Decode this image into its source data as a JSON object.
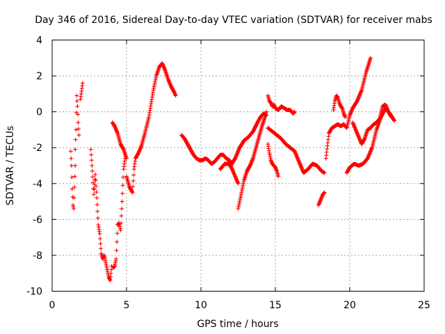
{
  "chart_data": {
    "type": "scatter",
    "title": "Day 346 of 2016, Sidereal Day-to-day VTEC variation (SDTVAR) for receiver mabs",
    "xlabel": "GPS time / hours",
    "ylabel": "SDTVAR / TECUs",
    "xlim": [
      0,
      25
    ],
    "ylim": [
      -10,
      4
    ],
    "xticks": [
      0,
      5,
      10,
      15,
      20,
      25
    ],
    "yticks": [
      -10,
      -8,
      -6,
      -4,
      -2,
      0,
      2,
      4
    ],
    "xtick_labels": [
      "0",
      "5",
      "10",
      "15",
      "20",
      "25"
    ],
    "ytick_labels": [
      "-10",
      "-8",
      "-6",
      "-4",
      "-2",
      "0",
      "2",
      "4"
    ],
    "grid": true,
    "marker": "+",
    "color": "#ff0000",
    "series": [
      {
        "name": "s1",
        "x": [
          1.25,
          1.3,
          1.35,
          1.4,
          1.45,
          1.5,
          1.55
        ],
        "y": [
          -2.2,
          -3.0,
          -4.3,
          -5.2,
          -5.4,
          -4.2,
          -3.0
        ]
      },
      {
        "name": "s2",
        "x": [
          1.55,
          1.6,
          1.65,
          1.7,
          1.75,
          1.8
        ],
        "y": [
          -2.1,
          -1.0,
          0.9,
          0.3,
          -0.6,
          -1.3
        ]
      },
      {
        "name": "s3",
        "x": [
          1.9,
          2.05
        ],
        "y": [
          0.7,
          1.6
        ]
      },
      {
        "name": "s4",
        "x": [
          2.6,
          2.7,
          2.8,
          2.9,
          3.0,
          3.1,
          3.2,
          3.3,
          3.4,
          3.5,
          3.6,
          3.7,
          3.8,
          3.9,
          4.0
        ],
        "y": [
          -2.1,
          -3.3,
          -4.6,
          -3.5,
          -4.8,
          -6.3,
          -6.8,
          -7.9,
          -8.2,
          -8.0,
          -8.4,
          -8.8,
          -9.2,
          -9.4,
          -8.6
        ]
      },
      {
        "name": "s5",
        "x": [
          4.1,
          4.2,
          4.3,
          4.4,
          4.5,
          4.6,
          4.7,
          4.8,
          4.9
        ],
        "y": [
          -8.7,
          -8.6,
          -8.2,
          -6.3,
          -6.2,
          -6.6,
          -5.0,
          -3.2,
          -2.6
        ]
      },
      {
        "name": "s6",
        "x": [
          4.05,
          4.2,
          4.4,
          4.6,
          4.8,
          5.0
        ],
        "y": [
          -0.6,
          -0.8,
          -1.2,
          -1.8,
          -2.1,
          -2.6
        ]
      },
      {
        "name": "s7",
        "x": [
          5.0,
          5.2,
          5.4,
          5.5,
          5.6,
          5.8,
          6.0,
          6.2,
          6.5,
          6.8,
          7.0,
          7.2,
          7.4,
          7.6,
          7.8,
          8.0,
          8.2,
          8.3
        ],
        "y": [
          -3.6,
          -4.2,
          -4.5,
          -3.2,
          -2.6,
          -2.3,
          -1.9,
          -1.3,
          -0.3,
          1.2,
          2.0,
          2.5,
          2.7,
          2.3,
          1.8,
          1.4,
          1.1,
          0.9
        ]
      },
      {
        "name": "s8",
        "x": [
          8.7,
          8.9,
          9.1,
          9.3,
          9.5,
          9.7,
          9.9,
          10.1,
          10.3,
          10.5,
          10.7,
          10.9,
          11.1,
          11.3,
          11.5,
          11.7,
          11.9,
          12.0
        ],
        "y": [
          -1.3,
          -1.5,
          -1.8,
          -2.1,
          -2.4,
          -2.6,
          -2.7,
          -2.7,
          -2.6,
          -2.7,
          -2.9,
          -2.8,
          -2.6,
          -2.4,
          -2.4,
          -2.6,
          -2.7,
          -2.8
        ]
      },
      {
        "name": "s9",
        "x": [
          11.3,
          11.6,
          11.9,
          12.1,
          12.3,
          12.5
        ],
        "y": [
          -3.2,
          -2.9,
          -2.9,
          -3.2,
          -3.6,
          -4.0
        ]
      },
      {
        "name": "s10",
        "x": [
          12.0,
          12.3,
          12.6,
          12.9,
          13.2,
          13.5,
          13.8,
          14.0,
          14.2,
          14.4
        ],
        "y": [
          -3.0,
          -2.6,
          -2.0,
          -1.6,
          -1.4,
          -1.1,
          -0.6,
          -0.3,
          -0.1,
          -0.2
        ]
      },
      {
        "name": "s11",
        "x": [
          12.5,
          12.7,
          12.9,
          13.1,
          13.3,
          13.5,
          13.7,
          13.9,
          14.1,
          14.3,
          14.4
        ],
        "y": [
          -5.4,
          -4.6,
          -3.8,
          -3.3,
          -3.0,
          -2.6,
          -2.0,
          -1.4,
          -0.8,
          -0.3,
          0.0
        ]
      },
      {
        "name": "s12",
        "x": [
          14.5,
          14.6,
          14.7,
          14.8,
          14.9,
          15.0,
          15.2,
          15.4,
          15.6,
          15.8,
          16.0,
          16.2,
          16.3
        ],
        "y": [
          0.9,
          0.6,
          0.5,
          0.3,
          0.4,
          0.2,
          0.1,
          0.3,
          0.2,
          0.1,
          0.1,
          -0.1,
          0.0
        ]
      },
      {
        "name": "s13",
        "x": [
          14.5,
          14.6,
          14.7,
          14.8,
          14.9,
          15.0,
          15.1,
          15.2
        ],
        "y": [
          -1.8,
          -2.3,
          -2.7,
          -2.9,
          -3.0,
          -3.1,
          -3.3,
          -3.6
        ]
      },
      {
        "name": "s14",
        "x": [
          14.5,
          14.8,
          15.1,
          15.4,
          15.7,
          16.0,
          16.3,
          16.6,
          16.9,
          17.2,
          17.5,
          17.8,
          18.1,
          18.3
        ],
        "y": [
          -0.9,
          -1.1,
          -1.3,
          -1.5,
          -1.8,
          -2.0,
          -2.2,
          -2.8,
          -3.4,
          -3.2,
          -2.9,
          -3.0,
          -3.3,
          -3.4
        ]
      },
      {
        "name": "s15",
        "x": [
          17.9,
          18.0,
          18.1,
          18.2,
          18.3
        ],
        "y": [
          -5.2,
          -5.0,
          -4.8,
          -4.6,
          -4.5
        ]
      },
      {
        "name": "s16",
        "x": [
          18.4,
          18.6,
          18.8,
          19.0,
          19.2,
          19.4,
          19.6,
          19.8,
          20.0,
          20.2,
          20.5,
          20.8,
          21.1,
          21.4
        ],
        "y": [
          -2.6,
          -1.2,
          -0.9,
          -0.8,
          -0.7,
          -0.8,
          -0.7,
          -0.9,
          -0.2,
          0.2,
          0.6,
          1.2,
          2.2,
          3.0
        ]
      },
      {
        "name": "s17",
        "x": [
          18.9,
          19.0,
          19.1,
          19.2,
          19.3,
          19.4,
          19.5,
          19.6,
          19.7
        ],
        "y": [
          0.1,
          0.6,
          0.9,
          0.8,
          0.5,
          0.3,
          0.2,
          -0.1,
          -0.3
        ]
      },
      {
        "name": "s18",
        "x": [
          19.8,
          20.0,
          20.3,
          20.6,
          20.9,
          21.2,
          21.5,
          21.8,
          22.1,
          22.4,
          22.7,
          23.0
        ],
        "y": [
          -3.4,
          -3.1,
          -2.9,
          -3.0,
          -2.9,
          -2.6,
          -2.0,
          -1.0,
          -0.3,
          0.2,
          -0.1,
          -0.5
        ]
      },
      {
        "name": "s19",
        "x": [
          20.2,
          20.4,
          20.6,
          20.8,
          21.0,
          21.2,
          21.4,
          21.6,
          21.8,
          22.0,
          22.2,
          22.4,
          22.6,
          22.8
        ],
        "y": [
          -0.6,
          -1.0,
          -1.4,
          -1.8,
          -1.5,
          -1.0,
          -0.9,
          -0.7,
          -0.6,
          -0.4,
          0.3,
          0.4,
          0.0,
          -0.3
        ]
      }
    ]
  }
}
